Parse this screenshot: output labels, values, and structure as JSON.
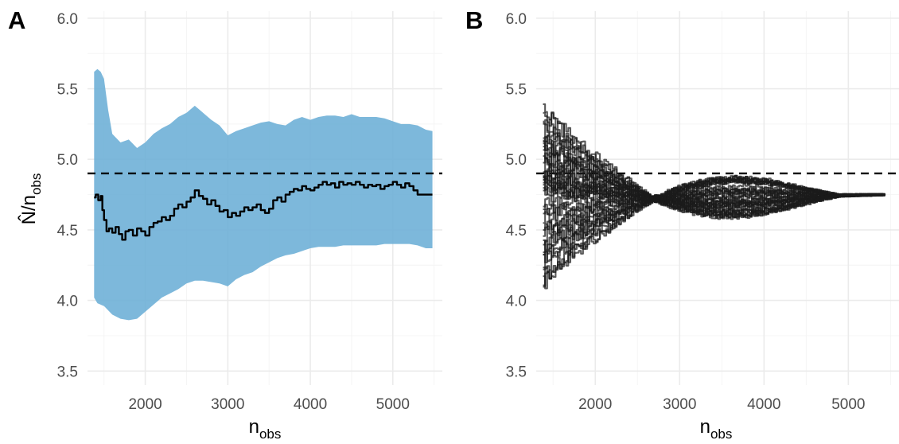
{
  "figure": {
    "colors": {
      "ribbon": "#6baed6",
      "estimate_line": "#000000",
      "true_value_line": "#000000",
      "trajectories": "#1a1a1a",
      "grid": "#ebebeb",
      "tick_text": "#4d4d4d"
    }
  },
  "chart_data": [
    {
      "panel": "A",
      "type": "area",
      "xlabel": "n_obs",
      "ylabel": "N̂/n_obs",
      "xlim": [
        1300,
        5600
      ],
      "ylim": [
        3.4,
        6.05
      ],
      "x_ticks": [
        2000,
        3000,
        4000,
        5000
      ],
      "y_ticks": [
        3.5,
        4.0,
        4.5,
        5.0,
        5.5,
        6.0
      ],
      "y_tick_labels": [
        "3.5",
        "4.0",
        "4.5",
        "5.0",
        "5.5",
        "6.0"
      ],
      "grid": true,
      "reference_line": {
        "y": 4.9,
        "style": "dashed"
      },
      "ribbon": {
        "x": [
          1380,
          1420,
          1460,
          1500,
          1550,
          1600,
          1700,
          1800,
          1900,
          2000,
          2100,
          2200,
          2300,
          2400,
          2500,
          2600,
          2700,
          2800,
          2900,
          3000,
          3100,
          3200,
          3300,
          3400,
          3500,
          3600,
          3700,
          3800,
          3900,
          4000,
          4100,
          4200,
          4300,
          4400,
          4500,
          4600,
          4700,
          4800,
          4900,
          5000,
          5100,
          5200,
          5300,
          5400,
          5480
        ],
        "lower": [
          4.02,
          3.98,
          3.97,
          3.96,
          3.93,
          3.9,
          3.87,
          3.86,
          3.87,
          3.92,
          3.97,
          4.02,
          4.05,
          4.08,
          4.12,
          4.14,
          4.14,
          4.13,
          4.12,
          4.1,
          4.15,
          4.18,
          4.2,
          4.24,
          4.27,
          4.3,
          4.32,
          4.33,
          4.35,
          4.37,
          4.38,
          4.38,
          4.38,
          4.39,
          4.39,
          4.39,
          4.39,
          4.39,
          4.4,
          4.4,
          4.4,
          4.4,
          4.39,
          4.37,
          4.37
        ],
        "upper": [
          5.62,
          5.64,
          5.62,
          5.57,
          5.35,
          5.18,
          5.12,
          5.14,
          5.08,
          5.12,
          5.18,
          5.22,
          5.25,
          5.3,
          5.33,
          5.38,
          5.33,
          5.28,
          5.24,
          5.17,
          5.2,
          5.22,
          5.24,
          5.26,
          5.27,
          5.25,
          5.24,
          5.28,
          5.3,
          5.28,
          5.3,
          5.31,
          5.31,
          5.3,
          5.32,
          5.3,
          5.3,
          5.3,
          5.29,
          5.27,
          5.25,
          5.25,
          5.24,
          5.21,
          5.2
        ]
      },
      "series": [
        {
          "x": [
            1380,
            1400,
            1430,
            1460,
            1480,
            1500,
            1530,
            1560,
            1600,
            1640,
            1680,
            1720,
            1760,
            1800,
            1850,
            1900,
            1950,
            2000,
            2050,
            2100,
            2150,
            2200,
            2250,
            2300,
            2350,
            2400,
            2450,
            2500,
            2550,
            2600,
            2650,
            2700,
            2750,
            2800,
            2850,
            2900,
            2950,
            3000,
            3050,
            3100,
            3150,
            3200,
            3250,
            3300,
            3350,
            3400,
            3450,
            3500,
            3550,
            3600,
            3650,
            3700,
            3750,
            3800,
            3850,
            3900,
            3950,
            4000,
            4050,
            4100,
            4150,
            4200,
            4250,
            4300,
            4350,
            4400,
            4450,
            4500,
            4550,
            4600,
            4650,
            4700,
            4750,
            4800,
            4850,
            4900,
            4950,
            5000,
            5050,
            5100,
            5150,
            5200,
            5250,
            5300,
            5350,
            5400,
            5480
          ],
          "values": [
            4.73,
            4.75,
            4.71,
            4.74,
            4.64,
            4.57,
            4.49,
            4.51,
            4.48,
            4.52,
            4.47,
            4.43,
            4.49,
            4.5,
            4.46,
            4.51,
            4.49,
            4.46,
            4.52,
            4.55,
            4.56,
            4.59,
            4.57,
            4.6,
            4.65,
            4.68,
            4.66,
            4.7,
            4.73,
            4.78,
            4.74,
            4.72,
            4.68,
            4.71,
            4.67,
            4.63,
            4.64,
            4.59,
            4.62,
            4.6,
            4.63,
            4.66,
            4.64,
            4.66,
            4.68,
            4.64,
            4.62,
            4.65,
            4.71,
            4.73,
            4.7,
            4.75,
            4.77,
            4.79,
            4.78,
            4.81,
            4.79,
            4.78,
            4.8,
            4.82,
            4.84,
            4.82,
            4.83,
            4.8,
            4.84,
            4.82,
            4.83,
            4.82,
            4.84,
            4.82,
            4.8,
            4.82,
            4.81,
            4.82,
            4.79,
            4.81,
            4.82,
            4.84,
            4.82,
            4.8,
            4.83,
            4.81,
            4.78,
            4.75,
            4.75,
            4.75,
            4.75
          ]
        }
      ]
    },
    {
      "panel": "B",
      "type": "line",
      "xlabel": "n_obs",
      "ylabel": "",
      "xlim": [
        1300,
        5600
      ],
      "ylim": [
        3.4,
        6.05
      ],
      "x_ticks": [
        2000,
        3000,
        4000,
        5000
      ],
      "y_ticks": [
        3.5,
        4.0,
        4.5,
        5.0,
        5.5,
        6.0
      ],
      "y_tick_labels": [
        "3.5",
        "4.0",
        "4.5",
        "5.0",
        "5.5",
        "6.0"
      ],
      "grid": true,
      "reference_line": {
        "y": 4.9,
        "style": "dashed"
      },
      "trajectory_summary": {
        "count": 40,
        "x_start": 1380,
        "x_end": 5450,
        "converges_to": 4.75,
        "pinch_x": 2700,
        "pinch_value": 4.72,
        "initial_range": [
          4.07,
          5.41
        ],
        "middle_range": [
          4.58,
          5.01
        ]
      }
    }
  ]
}
